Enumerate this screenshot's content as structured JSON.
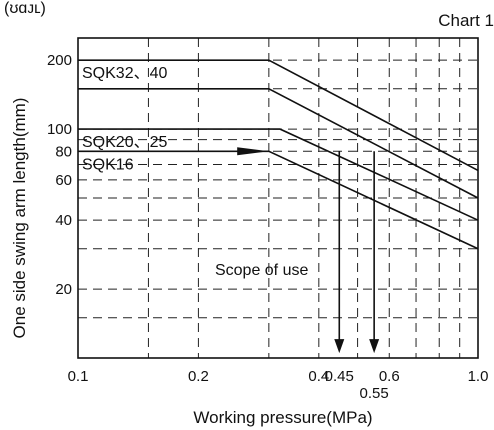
{
  "chart_data": {
    "type": "line",
    "title": "Chart 1",
    "header_fragment": "(ʊɑᴊʟ)",
    "xlabel": "Working pressure(MPa)",
    "ylabel": "One side swing arm length(mm)",
    "x_scale": "log",
    "y_scale": "log",
    "xlim": [
      0.1,
      1.0
    ],
    "ylim": [
      10,
      250
    ],
    "grid": true,
    "x_ticks": [
      {
        "value": 0.1,
        "label": "0.1"
      },
      {
        "value": 0.2,
        "label": "0.2"
      },
      {
        "value": 0.4,
        "label": "0.4"
      },
      {
        "value": 0.45,
        "label": "0.45"
      },
      {
        "value": 0.55,
        "label": "0.55"
      },
      {
        "value": 0.6,
        "label": "0.6"
      },
      {
        "value": 1.0,
        "label": "1.0"
      }
    ],
    "y_ticks": [
      {
        "value": 200,
        "label": "200"
      },
      {
        "value": 100,
        "label": "100"
      },
      {
        "value": 80,
        "label": "80"
      },
      {
        "value": 60,
        "label": "60"
      },
      {
        "value": 40,
        "label": "40"
      },
      {
        "value": 20,
        "label": "20"
      }
    ],
    "series": [
      {
        "name": "SQK32、40",
        "x": [
          0.1,
          0.3,
          1.0
        ],
        "y": [
          200,
          200,
          66
        ]
      },
      {
        "name": "",
        "x": [
          0.1,
          0.3,
          1.0
        ],
        "y": [
          150,
          150,
          50
        ]
      },
      {
        "name": "SQK20、25",
        "x": [
          0.1,
          0.32,
          1.0
        ],
        "y": [
          100,
          100,
          40
        ]
      },
      {
        "name": "SQK16",
        "x": [
          0.1,
          0.3,
          1.0
        ],
        "y": [
          80,
          80,
          30
        ]
      }
    ],
    "annotations": [
      {
        "text": "Scope of use",
        "x": 0.22,
        "y": 23
      },
      {
        "kind": "arrow",
        "from_x": 0.25,
        "to_x": 0.3,
        "y": 80
      },
      {
        "kind": "drop-arrow",
        "x": 0.45,
        "from_y": 80,
        "to_y": 10.5
      },
      {
        "kind": "drop-arrow",
        "x": 0.55,
        "from_y": 80,
        "to_y": 10.5
      }
    ]
  }
}
